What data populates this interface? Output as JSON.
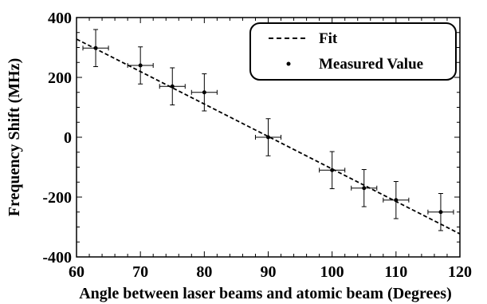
{
  "chart_data": {
    "type": "scatter",
    "title": "",
    "xlabel": "Angle between laser beams and atomic beam (Degrees)",
    "ylabel": "Frequency Shift (MHz)",
    "xlim": [
      60,
      120
    ],
    "ylim": [
      -400,
      400
    ],
    "xticks": [
      60,
      70,
      80,
      90,
      100,
      110,
      120
    ],
    "yticks": [
      -400,
      -200,
      0,
      200,
      400
    ],
    "grid": false,
    "legend": {
      "placement": "top-right",
      "fit_label": "Fit",
      "measured_label": "Measured Value"
    },
    "fit": {
      "style": "dashed",
      "points": [
        [
          60,
          328
        ],
        [
          120,
          -323
        ]
      ]
    },
    "series": [
      {
        "name": "Measured Value",
        "points": [
          {
            "x": 63,
            "y": 298,
            "xerr": 2,
            "yerr": 62
          },
          {
            "x": 70,
            "y": 240,
            "xerr": 2,
            "yerr": 62
          },
          {
            "x": 75,
            "y": 170,
            "xerr": 2,
            "yerr": 62
          },
          {
            "x": 80,
            "y": 150,
            "xerr": 2,
            "yerr": 62
          },
          {
            "x": 90,
            "y": 0,
            "xerr": 2,
            "yerr": 62
          },
          {
            "x": 100,
            "y": -110,
            "xerr": 2,
            "yerr": 62
          },
          {
            "x": 105,
            "y": -170,
            "xerr": 2,
            "yerr": 62
          },
          {
            "x": 110,
            "y": -210,
            "xerr": 2,
            "yerr": 62
          },
          {
            "x": 117,
            "y": -250,
            "xerr": 2,
            "yerr": 62
          }
        ]
      }
    ]
  }
}
